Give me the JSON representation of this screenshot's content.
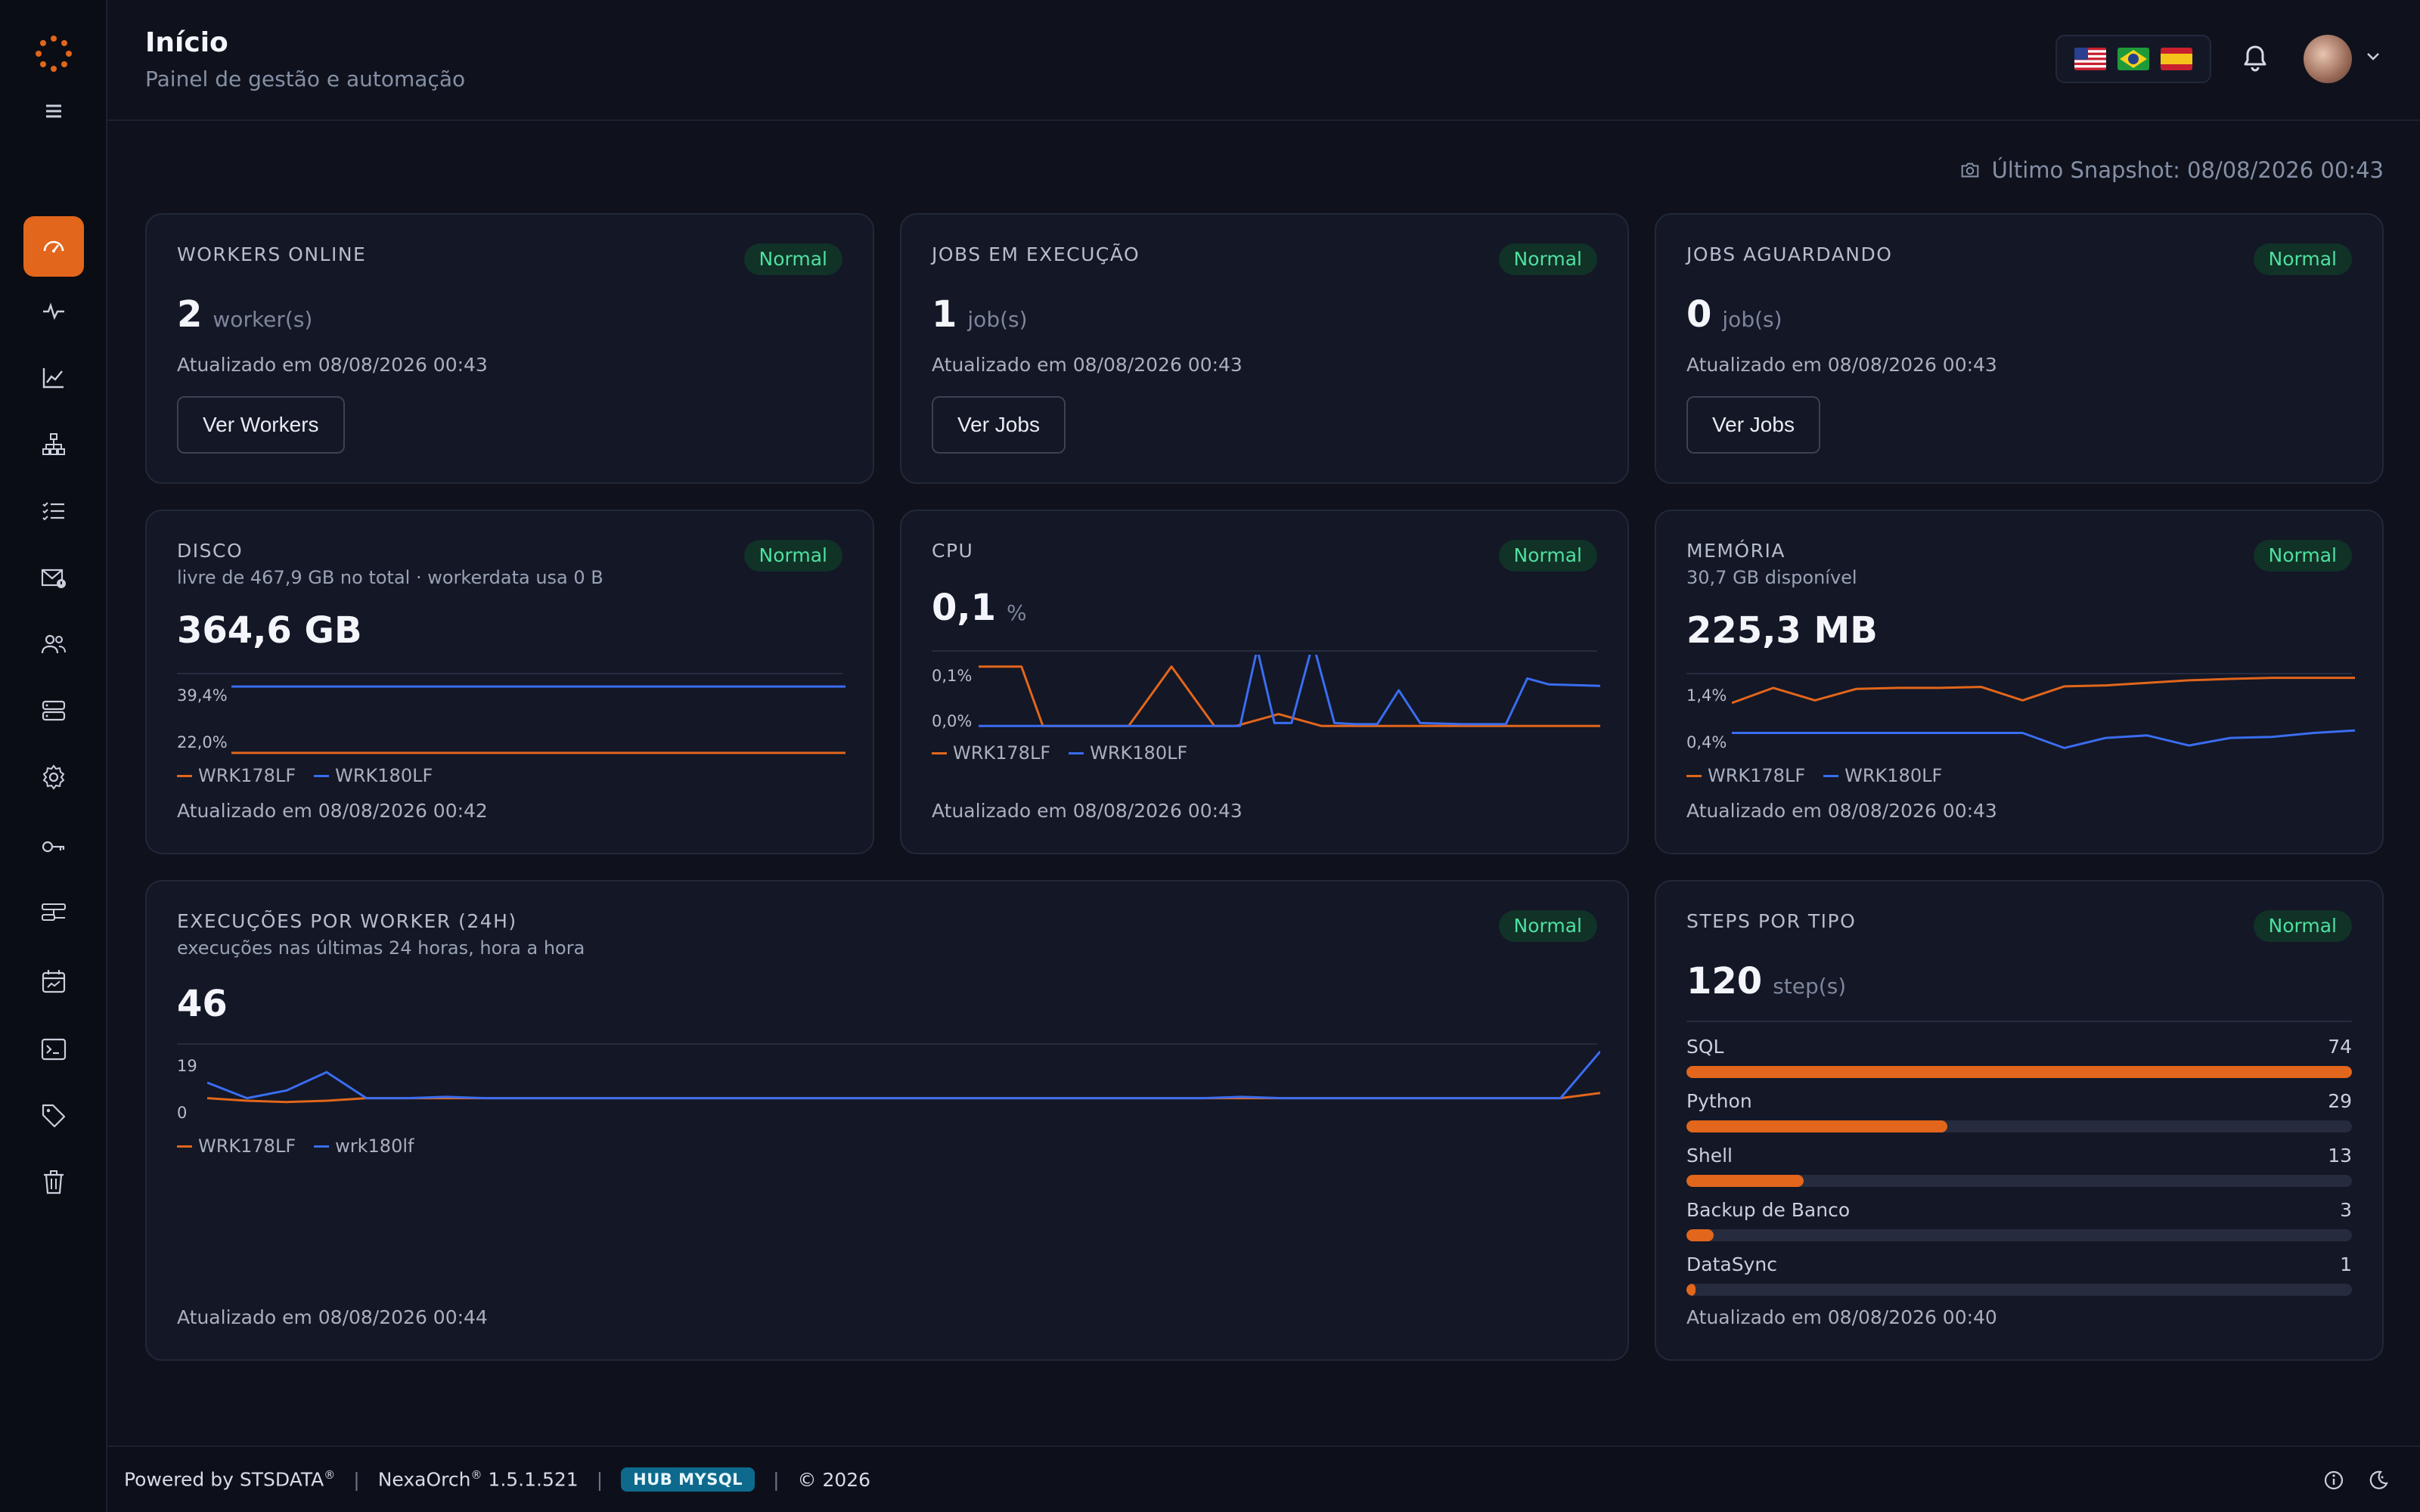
{
  "header": {
    "title": "Início",
    "subtitle": "Painel de gestão e automação"
  },
  "snapshot": "Último Snapshot: 08/08/2026 00:43",
  "colors": {
    "accent": "#e2661b",
    "series_a": "#e2661b",
    "series_b": "#3a6df0",
    "badge_text": "#4ee0a0",
    "badge_bg": "#113227"
  },
  "sidebar": {
    "items": [
      {
        "icon": "dashboard-icon",
        "active": true
      },
      {
        "icon": "activity-icon"
      },
      {
        "icon": "line-chart-icon"
      },
      {
        "icon": "network-icon"
      },
      {
        "icon": "list-check-icon"
      },
      {
        "icon": "mail-alert-icon"
      },
      {
        "icon": "users-icon"
      },
      {
        "icon": "server-icon"
      },
      {
        "icon": "gear-icon"
      },
      {
        "icon": "key-icon"
      },
      {
        "icon": "pipeline-icon"
      },
      {
        "icon": "calendar-icon"
      },
      {
        "icon": "terminal-icon"
      },
      {
        "icon": "tag-icon"
      },
      {
        "icon": "trash-icon"
      }
    ]
  },
  "cards": {
    "workers": {
      "title": "WORKERS ONLINE",
      "badge": "Normal",
      "value": "2",
      "unit": "worker(s)",
      "updated": "Atualizado em 08/08/2026 00:43",
      "button": "Ver Workers"
    },
    "jobs_running": {
      "title": "JOBS EM EXECUÇÃO",
      "badge": "Normal",
      "value": "1",
      "unit": "job(s)",
      "updated": "Atualizado em 08/08/2026 00:43",
      "button": "Ver Jobs"
    },
    "jobs_waiting": {
      "title": "JOBS AGUARDANDO",
      "badge": "Normal",
      "value": "0",
      "unit": "job(s)",
      "updated": "Atualizado em 08/08/2026 00:43",
      "button": "Ver Jobs"
    },
    "disk": {
      "title": "DISCO",
      "subtitle": "livre de 467,9 GB no total · workerdata usa 0 B",
      "badge": "Normal",
      "value": "364,6 GB",
      "updated": "Atualizado em 08/08/2026 00:42"
    },
    "cpu": {
      "title": "CPU",
      "badge": "Normal",
      "value": "0,1",
      "unit": "%",
      "updated": "Atualizado em 08/08/2026 00:43"
    },
    "memory": {
      "title": "MEMÓRIA",
      "subtitle": "30,7 GB disponível",
      "badge": "Normal",
      "value": "225,3 MB",
      "updated": "Atualizado em 08/08/2026 00:43"
    },
    "executions": {
      "title": "EXECUÇÕES POR WORKER (24H)",
      "subtitle": "execuções nas últimas 24 horas, hora a hora",
      "badge": "Normal",
      "value": "46",
      "updated": "Atualizado em 08/08/2026 00:44"
    },
    "steps": {
      "title": "STEPS POR TIPO",
      "badge": "Normal",
      "value": "120",
      "unit": "step(s)",
      "updated": "Atualizado em 08/08/2026 00:40",
      "items": [
        {
          "label": "SQL",
          "count": "74",
          "value": 74
        },
        {
          "label": "Python",
          "count": "29",
          "value": 29
        },
        {
          "label": "Shell",
          "count": "13",
          "value": 13
        },
        {
          "label": "Backup de Banco",
          "count": "3",
          "value": 3
        },
        {
          "label": "DataSync",
          "count": "1",
          "value": 1
        }
      ],
      "max": 74
    }
  },
  "chart_data": [
    {
      "type": "line",
      "id": "disk",
      "ytick_labels": [
        "39,4%",
        "22,0%"
      ],
      "ylim": [
        20,
        41
      ],
      "series": [
        {
          "name": "WRK178LF",
          "values": [
            22.0,
            22.0,
            22.0,
            22.0,
            22.0,
            22.0,
            22.0,
            22.0,
            22.0,
            22.0,
            22.0,
            22.0,
            22.0,
            22.0,
            22.0,
            22.0,
            22.0,
            22.0,
            22.0,
            22.0
          ]
        },
        {
          "name": "WRK180LF",
          "values": [
            39.4,
            39.4,
            39.4,
            39.4,
            39.4,
            39.4,
            39.4,
            39.4,
            39.4,
            39.4,
            39.4,
            39.4,
            39.4,
            39.4,
            39.4,
            39.4,
            39.4,
            39.4,
            39.4,
            39.4
          ]
        }
      ]
    },
    {
      "type": "line",
      "id": "cpu",
      "ytick_labels": [
        "0,1%",
        "0,0%"
      ],
      "ylim": [
        -0.02,
        0.12
      ],
      "series": [
        {
          "name": "WRK178LF",
          "values": [
            0.1,
            0.1,
            0.1,
            0.0,
            0.0,
            0.0,
            0.0,
            0.0,
            0.05,
            0.1,
            0.05,
            0.0,
            0.0,
            0.01,
            0.02,
            0.01,
            0.0,
            0.0,
            0.0,
            0.0,
            0.0,
            0.0,
            0.0,
            0.0,
            0.0,
            0.0,
            0.0,
            0.0,
            0.0,
            0.0
          ]
        },
        {
          "name": "WRK180LF",
          "values": [
            0.0,
            0.0,
            0.0,
            0.0,
            0.0,
            0.0,
            0.0,
            0.0,
            0.0,
            0.0,
            0.0,
            0.0,
            0.0,
            0.0,
            0.0,
            0.0,
            0.0,
            0.0,
            0.0,
            0.0,
            0.0,
            0.0,
            0.0,
            0.0,
            0.0,
            0.0,
            0.0,
            0.0,
            0.0,
            0.0
          ]
        }
      ],
      "spikes": {
        "series": 1,
        "points": [
          [
            0,
            0.0
          ],
          [
            6.5,
            0.0
          ],
          [
            11.5,
            0.0
          ],
          [
            12.2,
            0.0
          ],
          [
            13.0,
            0.13
          ],
          [
            13.8,
            0.005
          ],
          [
            14.6,
            0.005
          ],
          [
            15.6,
            0.14
          ],
          [
            16.6,
            0.005
          ],
          [
            17.6,
            0.003
          ],
          [
            18.6,
            0.003
          ],
          [
            19.6,
            0.06
          ],
          [
            20.6,
            0.005
          ],
          [
            22.6,
            0.003
          ],
          [
            24.6,
            0.003
          ],
          [
            25.6,
            0.08
          ],
          [
            26.6,
            0.07
          ]
        ]
      }
    },
    {
      "type": "line",
      "id": "memory",
      "ytick_labels": [
        "1,4%",
        "0,4%"
      ],
      "ylim": [
        0.0,
        1.6
      ],
      "series": [
        {
          "name": "WRK178LF",
          "values": [
            1.0,
            1.3,
            1.05,
            1.28,
            1.3,
            1.3,
            1.32,
            1.05,
            1.33,
            1.35,
            1.4,
            1.45,
            1.48,
            1.5,
            1.5,
            1.5
          ]
        },
        {
          "name": "WRK180LF",
          "values": [
            0.4,
            0.4,
            0.4,
            0.4,
            0.4,
            0.4,
            0.4,
            0.4,
            0.1,
            0.3,
            0.35,
            0.15,
            0.3,
            0.32,
            0.4,
            0.45
          ]
        }
      ]
    },
    {
      "type": "line",
      "id": "executions",
      "ytick_labels": [
        "19",
        "0"
      ],
      "ylim": [
        -15,
        20
      ],
      "series": [
        {
          "name": "WRK178LF",
          "values": [
            0,
            -1,
            -1.5,
            -1,
            0,
            0,
            0,
            0,
            0,
            0,
            0,
            0,
            0,
            0,
            0,
            0,
            0,
            0,
            0,
            0,
            0,
            0,
            0,
            0,
            0,
            0,
            0,
            0,
            0,
            0,
            0,
            0,
            0,
            0,
            0,
            2
          ]
        },
        {
          "name": "wrk180lf",
          "values": [
            6,
            0,
            3,
            10,
            0,
            0,
            0.5,
            0,
            0,
            0,
            0,
            0,
            0,
            0,
            0,
            0,
            0,
            0,
            0,
            0,
            0,
            0,
            0,
            0,
            0,
            0,
            0.5,
            0,
            0,
            0,
            0,
            0,
            0,
            0,
            0,
            18
          ]
        }
      ]
    }
  ],
  "footer": {
    "powered": "Powered by STSDATA",
    "product": "NexaOrch",
    "version": "1.5.1.521",
    "hub": "HUB MYSQL",
    "copyright": "© 2026",
    "reg": "®"
  }
}
